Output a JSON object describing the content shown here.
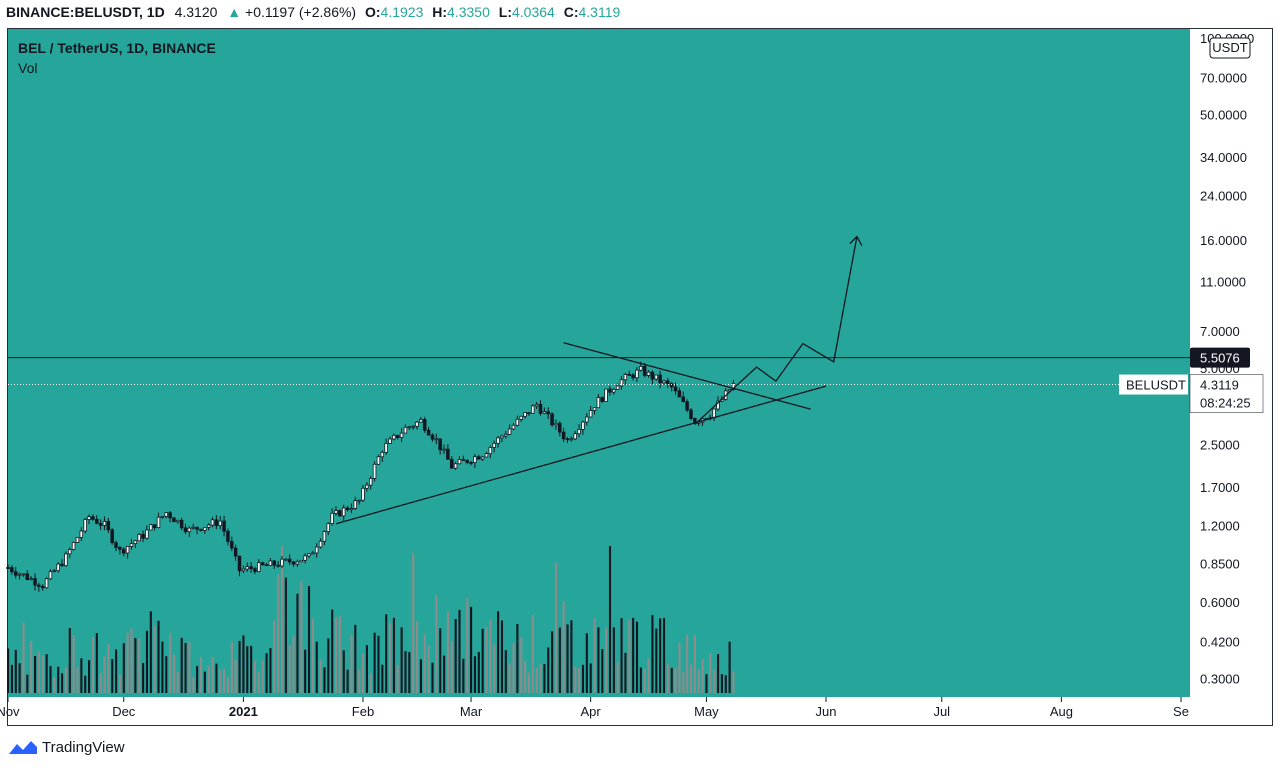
{
  "header": {
    "symbol": "BINANCE:BELUSDT, 1D",
    "last": "4.3120",
    "change": "+0.1197 (+2.86%)",
    "open_label": "O:",
    "open": "4.1923",
    "high_label": "H:",
    "high": "4.3350",
    "low_label": "L:",
    "low": "4.0364",
    "close_label": "C:",
    "close": "4.3119",
    "up_arrow": "▲"
  },
  "legend": {
    "title": "BEL / TetherUS, 1D, BINANCE",
    "volume": "Vol"
  },
  "currency_badge": "USDT",
  "price_tags": {
    "resistance": "5.5076",
    "symbol": "BELUSDT",
    "price": "4.3119",
    "countdown": "08:24:25"
  },
  "footer": {
    "brand": "TradingView"
  },
  "colors": {
    "background": "#26a69a",
    "candle": "#131722",
    "volume": "#8c8c8c",
    "accent": "#2962ff"
  },
  "chart_data": {
    "type": "candlestick",
    "y_scale": "log",
    "y_ticks": [
      "100.0000",
      "70.0000",
      "50.0000",
      "34.0000",
      "24.0000",
      "16.0000",
      "11.0000",
      "7.0000",
      "5.0000",
      "3.5000",
      "2.5000",
      "1.7000",
      "1.2000",
      "0.8500",
      "0.6000",
      "0.4200",
      "0.3000"
    ],
    "y_tick_values": [
      100,
      70,
      50,
      34,
      24,
      16,
      11,
      7,
      5,
      3.5,
      2.5,
      1.7,
      1.2,
      0.85,
      0.6,
      0.42,
      0.3
    ],
    "x_ticks": [
      "Nov",
      "Dec",
      "2021",
      "Feb",
      "Mar",
      "Apr",
      "May",
      "Jun",
      "Jul",
      "Aug",
      "Se"
    ],
    "x_tick_dates": [
      "2020-11-01",
      "2020-12-01",
      "2021-01-01",
      "2021-02-01",
      "2021-03-01",
      "2021-04-01",
      "2021-05-01",
      "2021-06-01",
      "2021-07-01",
      "2021-08-01",
      "2021-09-01"
    ],
    "price_path": [
      [
        "2020-11-01",
        0.82
      ],
      [
        "2020-11-10",
        0.7
      ],
      [
        "2020-11-16",
        0.9
      ],
      [
        "2020-11-22",
        1.3
      ],
      [
        "2020-11-26",
        1.2
      ],
      [
        "2020-11-30",
        0.95
      ],
      [
        "2020-12-06",
        1.1
      ],
      [
        "2020-12-12",
        1.35
      ],
      [
        "2020-12-18",
        1.15
      ],
      [
        "2020-12-26",
        1.25
      ],
      [
        "2020-12-31",
        0.8
      ],
      [
        "2021-01-10",
        0.85
      ],
      [
        "2021-01-18",
        0.9
      ],
      [
        "2021-01-24",
        1.3
      ],
      [
        "2021-01-31",
        1.5
      ],
      [
        "2021-02-06",
        2.4
      ],
      [
        "2021-02-12",
        2.9
      ],
      [
        "2021-02-16",
        3.1
      ],
      [
        "2021-02-20",
        2.6
      ],
      [
        "2021-02-24",
        2.05
      ],
      [
        "2021-03-04",
        2.3
      ],
      [
        "2021-03-10",
        2.8
      ],
      [
        "2021-03-18",
        3.6
      ],
      [
        "2021-03-26",
        2.6
      ],
      [
        "2021-04-02",
        3.6
      ],
      [
        "2021-04-08",
        4.4
      ],
      [
        "2021-04-14",
        4.9
      ],
      [
        "2021-04-22",
        4.2
      ],
      [
        "2021-04-28",
        3.1
      ],
      [
        "2021-05-02",
        3.3
      ],
      [
        "2021-05-08",
        4.31
      ]
    ],
    "volume_path": [
      0.3,
      0.25,
      0.4,
      0.35,
      0.3,
      0.45,
      0.6,
      0.3,
      0.25,
      0.3,
      0.35,
      0.9,
      0.7,
      0.5,
      0.4,
      0.35,
      0.45,
      0.5,
      0.6,
      0.55,
      0.5,
      0.45,
      0.4,
      0.5,
      0.45,
      0.6,
      0.5,
      0.45,
      0.4,
      0.35,
      0.3
    ],
    "horizontal_line": 5.5076,
    "current_price": 4.3119,
    "drawings": {
      "support_line": [
        [
          "2021-01-25",
          1.22
        ],
        [
          "2021-06-01",
          4.25
        ]
      ],
      "resistance_line": [
        [
          "2021-03-25",
          6.3
        ],
        [
          "2021-05-28",
          3.45
        ]
      ],
      "projection": [
        [
          "2021-04-28",
          3.0
        ],
        [
          "2021-05-09",
          4.3
        ],
        [
          "2021-05-14",
          5.05
        ],
        [
          "2021-05-19",
          4.45
        ],
        [
          "2021-05-26",
          6.25
        ],
        [
          "2021-06-03",
          5.3
        ],
        [
          "2021-06-09",
          16.5
        ]
      ]
    }
  }
}
